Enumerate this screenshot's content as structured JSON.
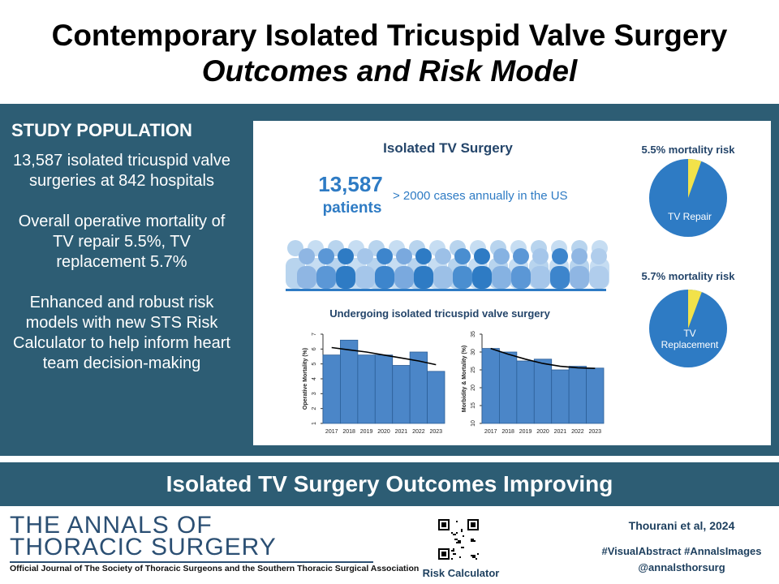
{
  "title": {
    "line1": "Contemporary Isolated Tricuspid Valve Surgery",
    "line2": "Outcomes and Risk Model"
  },
  "left_panel": {
    "heading": "STUDY POPULATION",
    "paragraphs": [
      "13,587 isolated tricuspid valve surgeries at 842 hospitals",
      "Overall operative mortality of TV repair 5.5%, TV replacement 5.7%",
      "Enhanced and robust risk models with new STS Risk Calculator to help inform heart team decision-making"
    ]
  },
  "infographic": {
    "heading": "Isolated TV Surgery",
    "patients_number": "13,587",
    "patients_label": "patients",
    "annual_text": "> 2000 cases annually in the US",
    "crowd_caption": "Undergoing isolated tricuspid valve surgery",
    "pie_repair": {
      "risk_label": "5.5% mortality risk",
      "name": "TV Repair",
      "value": 5.5
    },
    "pie_replacement": {
      "risk_label": "5.7% mortality risk",
      "name_line1": "TV",
      "name_line2": "Replacement",
      "value": 5.7
    }
  },
  "chart_data": [
    {
      "type": "bar",
      "categories": [
        "2017",
        "2018",
        "2019",
        "2020",
        "2021",
        "2022",
        "2023"
      ],
      "values": [
        5.6,
        6.6,
        5.6,
        5.6,
        4.9,
        5.8,
        4.5
      ],
      "trend": [
        6.1,
        5.95,
        5.8,
        5.6,
        5.4,
        5.2,
        4.95
      ],
      "title": "",
      "xlabel": "",
      "ylabel": "Operative Mortality (%)",
      "ylim": [
        1,
        7
      ],
      "yticks": [
        "1",
        "2",
        "3",
        "4",
        "5",
        "6",
        "7"
      ]
    },
    {
      "type": "bar",
      "categories": [
        "2017",
        "2018",
        "2019",
        "2020",
        "2021",
        "2022",
        "2023"
      ],
      "values": [
        31,
        30,
        27.5,
        28,
        25,
        26,
        25.5
      ],
      "trend": [
        31,
        29.4,
        28,
        26.8,
        26,
        25.6,
        25.4
      ],
      "title": "",
      "xlabel": "",
      "ylabel": "Morbidity & Mortality (%)",
      "ylim": [
        10,
        35
      ],
      "yticks": [
        "10",
        "15",
        "20",
        "25",
        "30",
        "35"
      ]
    }
  ],
  "banner": {
    "text": "Isolated TV Surgery Outcomes Improving"
  },
  "footer": {
    "annals_line1": "THE ANNALS OF",
    "annals_line2": "THORACIC SURGERY",
    "annals_sub": "Official Journal of The Society of Thoracic Surgeons and the Southern Thoracic Surgical Association",
    "qr_label": "Risk Calculator",
    "citation": "Thourani et al, 2024",
    "hashtags": "#VisualAbstract #AnnalsImages",
    "handle": "@annalsthorsurg"
  },
  "colors": {
    "teal": "#2d5d74",
    "blue": "#2e7bc4",
    "bar": "#4b86c8",
    "yellow": "#f2e24a",
    "navy": "#1d3f5e"
  }
}
